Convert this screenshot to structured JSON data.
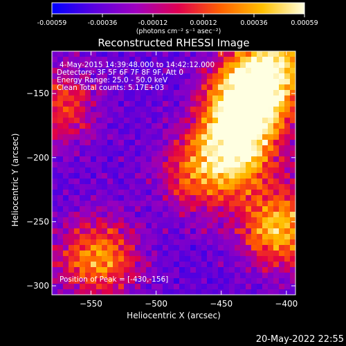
{
  "chart_data": {
    "type": "heatmap",
    "title": "Reconstructed RHESSI Image",
    "xlabel": "Heliocentric X (arcsec)",
    "ylabel": "Heliocentric Y (arcsec)",
    "xlim": [
      -580,
      -393
    ],
    "ylim": [
      -307,
      -117
    ],
    "x_ticks": [
      -550,
      -500,
      -450,
      -400
    ],
    "y_ticks": [
      -150,
      -200,
      -250,
      -300
    ],
    "colorbar": {
      "range": [
        -0.00059,
        0.00059
      ],
      "ticks": [
        "-0.00059",
        "-0.00036",
        "-0.00012",
        "0.00012",
        "0.00036",
        "0.00059"
      ],
      "unit_label": "(photons cm⁻² s⁻¹ asec⁻²)",
      "colors": [
        "#0000ff",
        "#5a00e0",
        "#a000c0",
        "#e00050",
        "#ff6000",
        "#ffc000",
        "#ffffe0"
      ]
    },
    "annotations": {
      "time_range": "4-May-2015 14:39:48.000 to 14:42:12.000",
      "detectors": "Detectors: 3F 5F 6F 7F 8F 9F, Att 0",
      "energy": "Energy Range: 25.0 - 50.0 keV",
      "clean": "Clean     Total counts: 5.17E+03",
      "peak": "Position of Peak = [-430,-156]"
    },
    "peak_position": [
      -430,
      -156
    ],
    "sources": [
      {
        "x": -430,
        "y": -156,
        "strength": 1.0
      },
      {
        "x": -440,
        "y": -195,
        "strength": 0.8
      },
      {
        "x": -410,
        "y": -125,
        "strength": 0.7
      },
      {
        "x": -405,
        "y": -255,
        "strength": 0.75
      },
      {
        "x": -545,
        "y": -278,
        "strength": 0.65
      },
      {
        "x": -470,
        "y": -215,
        "strength": 0.4
      },
      {
        "x": -575,
        "y": -160,
        "strength": 0.45
      }
    ]
  },
  "footer": {
    "date": "20-May-2022 22:55"
  }
}
